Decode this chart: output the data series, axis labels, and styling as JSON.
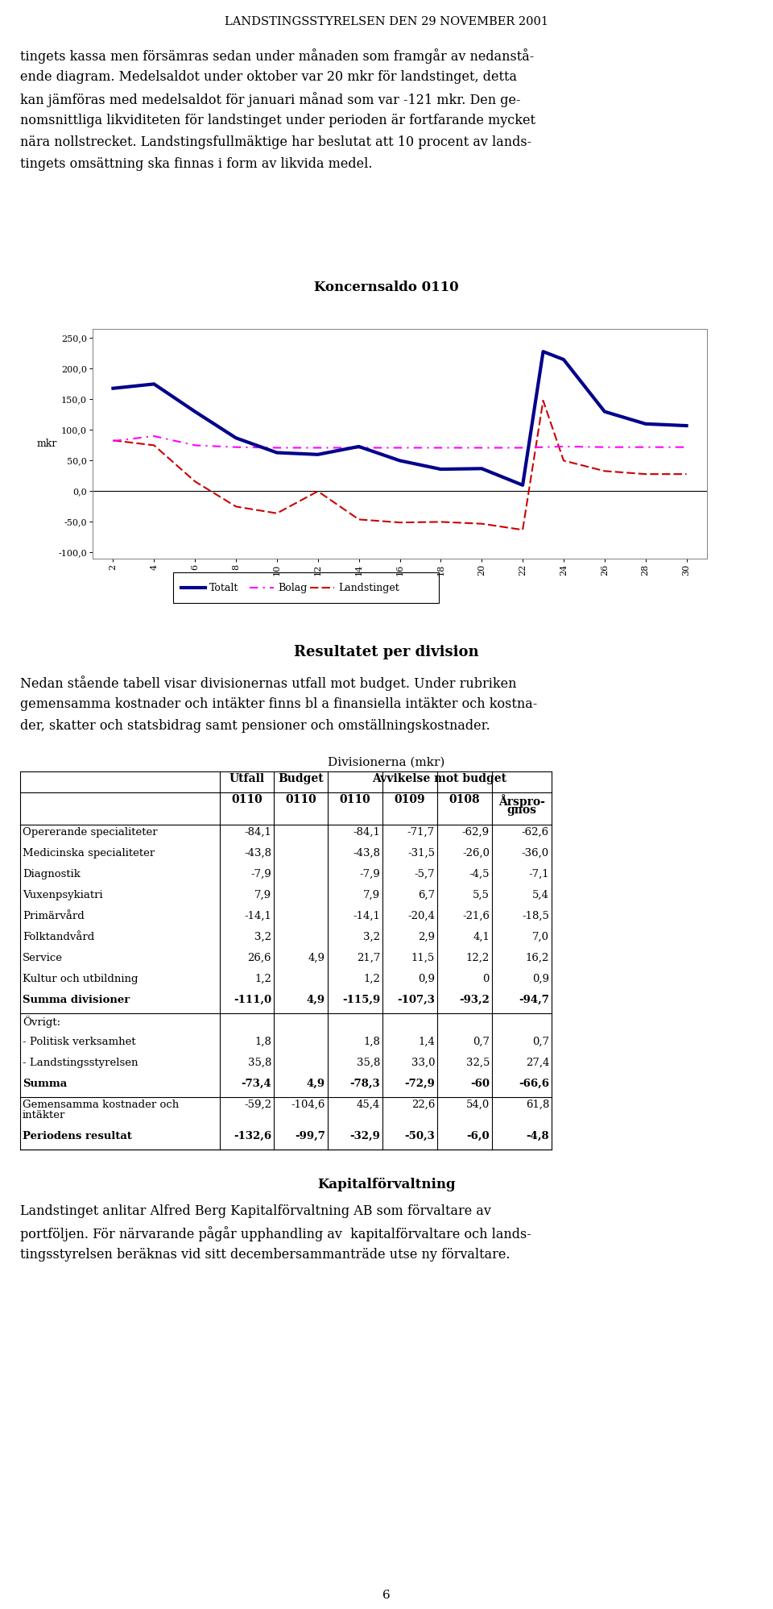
{
  "page_title": "LANDSTINGSSTYRELSEN DEN 29 NOVEMBER 2001",
  "para_lines": [
    "tingets kassa men försämras sedan under månaden som framgår av nedanstå-",
    "ende diagram. Medelsaldot under oktober var 20 mkr för landstinget, detta",
    "kan jämföras med medelsaldot för januari månad som var -121 mkr. Den ge-",
    "nomsnittliga likviditeten för landstinget under perioden är fortfarande mycket",
    "nära nollstrecket. Landstingsfullmäktige har beslutat att 10 procent av lands-",
    "tingets omsättning ska finnas i form av likvida medel."
  ],
  "chart_title": "Koncernsaldo 0110",
  "chart_ylabel": "mkr",
  "x_totalt": [
    2,
    4,
    6,
    8,
    10,
    12,
    14,
    16,
    18,
    20,
    22,
    23,
    24,
    26,
    28,
    30
  ],
  "y_totalt": [
    168,
    175,
    130,
    87,
    63,
    60,
    73,
    50,
    36,
    37,
    10,
    228,
    215,
    130,
    110,
    107
  ],
  "x_bolag": [
    2,
    4,
    6,
    8,
    10,
    12,
    14,
    16,
    18,
    20,
    22,
    24,
    26,
    28,
    30
  ],
  "y_bolag": [
    82,
    90,
    75,
    72,
    71,
    71,
    71,
    71,
    71,
    71,
    71,
    73,
    72,
    72,
    72
  ],
  "x_land": [
    2,
    4,
    6,
    8,
    10,
    12,
    14,
    16,
    18,
    20,
    22,
    23,
    24,
    26,
    28,
    30
  ],
  "y_land": [
    83,
    75,
    16,
    -25,
    -36,
    0,
    -46,
    -51,
    -50,
    -53,
    -63,
    148,
    50,
    33,
    28,
    28
  ],
  "xticks": [
    2,
    4,
    6,
    8,
    10,
    12,
    14,
    16,
    18,
    20,
    22,
    24,
    26,
    28,
    30
  ],
  "yticks": [
    -100,
    -50,
    0,
    50,
    100,
    150,
    200,
    250
  ],
  "ytick_labels": [
    "-100,0",
    "-50,0",
    "0,0",
    "50,0",
    "100,0",
    "150,0",
    "200,0",
    "250,0"
  ],
  "section2_title": "Resultatet per division",
  "s2_lines": [
    "Nedan stående tabell visar divisionernas utfall mot budget. Under rubriken",
    "gemensamma kostnader och intäkter finns bl a finansiella intäkter och kostna-",
    "der, skatter och statsbidrag samt pensioner och omställningskostnader."
  ],
  "table_title": "Divisionerna (mkr)",
  "col_header1": [
    "",
    "Utfall",
    "Budget",
    "Avvikelse mot budget"
  ],
  "col_header2": [
    "",
    "0110",
    "0110",
    "0110",
    "0109",
    "0108",
    "Årspro-\ngnos"
  ],
  "table_rows": [
    [
      "Opererande specialiteter",
      "-84,1",
      "",
      "-84,1",
      "-71,7",
      "-62,9",
      "-62,6",
      false
    ],
    [
      "Medicinska specialiteter",
      "-43,8",
      "",
      "-43,8",
      "-31,5",
      "-26,0",
      "-36,0",
      false
    ],
    [
      "Diagnostik",
      "-7,9",
      "",
      "-7,9",
      "-5,7",
      "-4,5",
      "-7,1",
      false
    ],
    [
      "Vuxenpsykiatri",
      "7,9",
      "",
      "7,9",
      "6,7",
      "5,5",
      "5,4",
      false
    ],
    [
      "Primärvård",
      "-14,1",
      "",
      "-14,1",
      "-20,4",
      "-21,6",
      "-18,5",
      false
    ],
    [
      "Folktandvård",
      "3,2",
      "",
      "3,2",
      "2,9",
      "4,1",
      "7,0",
      false
    ],
    [
      "Service",
      "26,6",
      "4,9",
      "21,7",
      "11,5",
      "12,2",
      "16,2",
      false
    ],
    [
      "Kultur och utbildning",
      "1,2",
      "",
      "1,2",
      "0,9",
      "0",
      "0,9",
      false
    ],
    [
      "Summa divisioner",
      "-111,0",
      "4,9",
      "-115,9",
      "-107,3",
      "-93,2",
      "-94,7",
      true
    ],
    [
      "Övrigt:",
      "",
      "",
      "",
      "",
      "",
      "",
      false
    ],
    [
      "- Politisk verksamhet",
      "1,8",
      "",
      "1,8",
      "1,4",
      "0,7",
      "0,7",
      false
    ],
    [
      "- Landstingsstyrelsen",
      "35,8",
      "",
      "35,8",
      "33,0",
      "32,5",
      "27,4",
      false
    ],
    [
      "Summa",
      "-73,4",
      "4,9",
      "-78,3",
      "-72,9",
      "-60",
      "-66,6",
      true
    ],
    [
      "Gemensamma kostnader och\nintäkter",
      "-59,2",
      "-104,6",
      "45,4",
      "22,6",
      "54,0",
      "61,8",
      false
    ],
    [
      "Periodens resultat",
      "-132,6",
      "-99,7",
      "-32,9",
      "-50,3",
      "-6,0",
      "-4,8",
      true
    ]
  ],
  "section3_title": "Kapitalförvaltning",
  "s3_lines": [
    "Landstinget anlitar Alfred Berg Kapitalförvaltning AB som förvaltare av",
    "portföljen. För närvarande pågår upphandling av  kapitalförvaltare och lands-",
    "tingsstyrelsen beräknas vid sitt decembersammanträde utse ny förvaltare."
  ],
  "page_num": "6",
  "color_totalt": "#00008B",
  "color_bolag": "#FF00FF",
  "color_land": "#CC0000"
}
